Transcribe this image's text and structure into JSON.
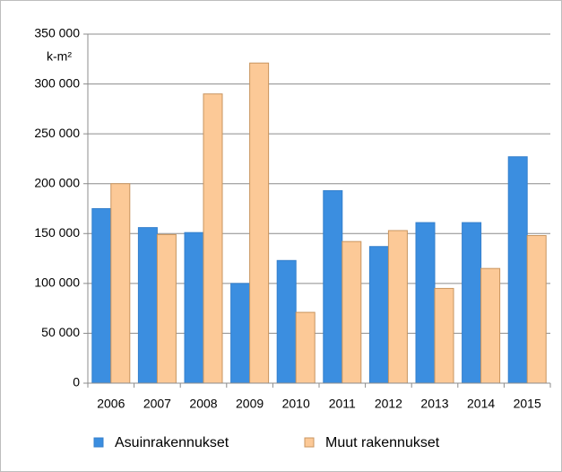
{
  "chart_data": {
    "type": "bar",
    "ylabel": "k-m²",
    "categories": [
      "2006",
      "2007",
      "2008",
      "2009",
      "2010",
      "2011",
      "2012",
      "2013",
      "2014",
      "2015"
    ],
    "series": [
      {
        "name": "Asuinrakennukset",
        "color": "#3b8ee0",
        "values": [
          175000,
          156000,
          151000,
          100000,
          123000,
          193000,
          137000,
          161000,
          161000,
          227000
        ]
      },
      {
        "name": "Muut rakennukset",
        "color": "#fcc997",
        "values": [
          200000,
          149000,
          290000,
          321000,
          71000,
          142000,
          153000,
          95000,
          115000,
          148000
        ]
      }
    ],
    "ylim": [
      0,
      350000
    ],
    "yticks": [
      0,
      {
        "value": 50000,
        "label": "50 000"
      },
      {
        "value": 100000,
        "label": "100 000"
      },
      {
        "value": 150000,
        "label": "150 000"
      },
      {
        "value": 200000,
        "label": "200 000"
      },
      {
        "value": 250000,
        "label": "250 000"
      },
      {
        "value": 300000,
        "label": "300 000"
      },
      {
        "value": 350000,
        "label": "350 000"
      }
    ],
    "grid": true,
    "legend": "bottom"
  }
}
